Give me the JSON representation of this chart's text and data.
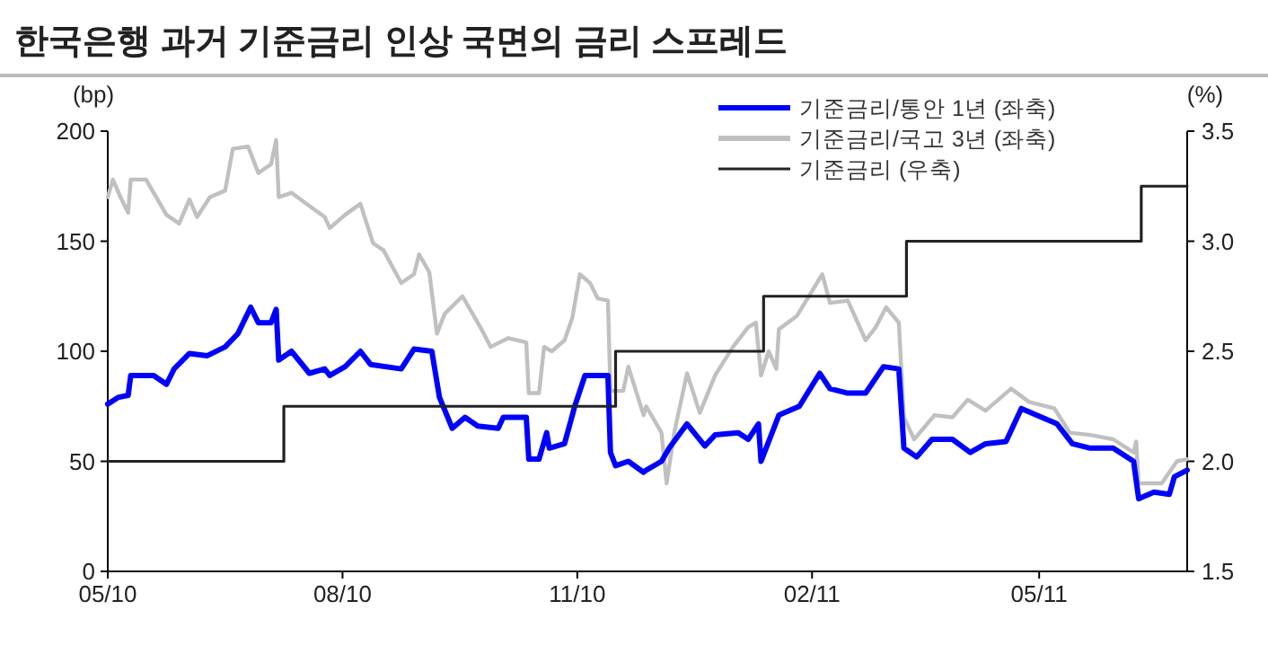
{
  "chart_data": {
    "type": "line",
    "title": "한국은행 과거 기준금리 인상 국면의 금리 스프레드",
    "ylabel": "(bp)",
    "y2label": "(%)",
    "xlim": [
      "2010-05-01",
      "2011-06-28"
    ],
    "xticks": [
      {
        "value": "2010-05-01",
        "label": "05/10"
      },
      {
        "value": "2010-08-01",
        "label": "08/10"
      },
      {
        "value": "2010-11-01",
        "label": "11/10"
      },
      {
        "value": "2011-02-01",
        "label": "02/11"
      },
      {
        "value": "2011-05-01",
        "label": "05/11"
      }
    ],
    "ylim": [
      0,
      200
    ],
    "yticks": [
      0,
      50,
      100,
      150,
      200
    ],
    "y2lim": [
      1.5,
      3.5
    ],
    "y2ticks": [
      {
        "value": 1.5,
        "label": "1.5"
      },
      {
        "value": 2,
        "label": "2.0"
      },
      {
        "value": 2.5,
        "label": "2.5"
      },
      {
        "value": 3,
        "label": "3.0"
      },
      {
        "value": 3.5,
        "label": "3.5"
      }
    ],
    "grid": false,
    "legend": "top right",
    "series": [
      {
        "name": "기준금리/국고 3년 (좌축)",
        "color": "#c0c0c0",
        "x": [
          "2010-05-01",
          "2010-05-03",
          "2010-05-06",
          "2010-05-09",
          "2010-05-10",
          "2010-05-16",
          "2010-05-24",
          "2010-05-29",
          "2010-06-02",
          "2010-06-05",
          "2010-06-10",
          "2010-06-16",
          "2010-06-19",
          "2010-06-25",
          "2010-06-29",
          "2010-07-04",
          "2010-07-06",
          "2010-07-07",
          "2010-07-12",
          "2010-07-19",
          "2010-07-25",
          "2010-07-27",
          "2010-08-02",
          "2010-08-08",
          "2010-08-13",
          "2010-08-17",
          "2010-08-24",
          "2010-08-29",
          "2010-08-31",
          "2010-09-04",
          "2010-09-07",
          "2010-09-10",
          "2010-09-17",
          "2010-09-24",
          "2010-09-28",
          "2010-10-05",
          "2010-10-12",
          "2010-10-13",
          "2010-10-17",
          "2010-10-19",
          "2010-10-22",
          "2010-10-27",
          "2010-10-30",
          "2010-11-02",
          "2010-11-06",
          "2010-11-09",
          "2010-11-13",
          "2010-11-14",
          "2010-11-19",
          "2010-11-21",
          "2010-11-27",
          "2010-11-28",
          "2010-12-04",
          "2010-12-06",
          "2010-12-09",
          "2010-12-14",
          "2010-12-19",
          "2010-12-25",
          "2011-01-01",
          "2011-01-07",
          "2011-01-10",
          "2011-01-12",
          "2011-01-15",
          "2011-01-18",
          "2011-01-19",
          "2011-01-26",
          "2011-02-05",
          "2011-02-08",
          "2011-02-15",
          "2011-02-22",
          "2011-02-26",
          "2011-03-02",
          "2011-03-07",
          "2011-03-09",
          "2011-03-13",
          "2011-03-21",
          "2011-03-28",
          "2011-04-03",
          "2011-04-10",
          "2011-04-20",
          "2011-04-27",
          "2011-05-07",
          "2011-05-13",
          "2011-05-21",
          "2011-05-30",
          "2011-06-07",
          "2011-06-08",
          "2011-06-09",
          "2011-06-15",
          "2011-06-18",
          "2011-06-24",
          "2011-06-28"
        ],
        "values": [
          170,
          178,
          170,
          163,
          178,
          178,
          162,
          158,
          169,
          161,
          170,
          173,
          192,
          193,
          181,
          185,
          196,
          170,
          172,
          166,
          161,
          156,
          162,
          167,
          149,
          146,
          131,
          135,
          144,
          136,
          108,
          117,
          125,
          111,
          102,
          106,
          104,
          81,
          81,
          102,
          100,
          105,
          115,
          135,
          131,
          124,
          123,
          82,
          82,
          93,
          71,
          75,
          63,
          40,
          63,
          90,
          72,
          89,
          102,
          111,
          113,
          89,
          100,
          92,
          110,
          116,
          135,
          122,
          123,
          105,
          111,
          120,
          113,
          70,
          60,
          71,
          70,
          78,
          73,
          83,
          77,
          74,
          63,
          62,
          60,
          54,
          59,
          40,
          40,
          40,
          50,
          51
        ]
      },
      {
        "name": "기준금리/통안 1년 (좌축)",
        "color": "#0000ff",
        "x": [
          "2010-05-01",
          "2010-05-05",
          "2010-05-09",
          "2010-05-10",
          "2010-05-19",
          "2010-05-24",
          "2010-05-27",
          "2010-06-02",
          "2010-06-09",
          "2010-06-16",
          "2010-06-21",
          "2010-06-26",
          "2010-06-29",
          "2010-07-04",
          "2010-07-06",
          "2010-07-07",
          "2010-07-12",
          "2010-07-19",
          "2010-07-25",
          "2010-07-27",
          "2010-08-02",
          "2010-08-08",
          "2010-08-12",
          "2010-08-24",
          "2010-08-29",
          "2010-09-05",
          "2010-09-08",
          "2010-09-13",
          "2010-09-18",
          "2010-09-23",
          "2010-10-01",
          "2010-10-03",
          "2010-10-12",
          "2010-10-13",
          "2010-10-17",
          "2010-10-20",
          "2010-10-21",
          "2010-10-27",
          "2010-10-31",
          "2010-11-04",
          "2010-11-09",
          "2010-11-13",
          "2010-11-14",
          "2010-11-16",
          "2010-11-21",
          "2010-11-27",
          "2010-11-28",
          "2010-12-04",
          "2010-12-07",
          "2010-12-14",
          "2010-12-21",
          "2010-12-25",
          "2011-01-03",
          "2011-01-07",
          "2011-01-11",
          "2011-01-12",
          "2011-01-19",
          "2011-01-27",
          "2011-02-04",
          "2011-02-08",
          "2011-02-15",
          "2011-02-22",
          "2011-03-01",
          "2011-03-07",
          "2011-03-09",
          "2011-03-14",
          "2011-03-20",
          "2011-03-28",
          "2011-04-04",
          "2011-04-10",
          "2011-04-18",
          "2011-04-24",
          "2011-05-02",
          "2011-05-08",
          "2011-05-14",
          "2011-05-21",
          "2011-05-30",
          "2011-06-07",
          "2011-06-09",
          "2011-06-15",
          "2011-06-21",
          "2011-06-23",
          "2011-06-28"
        ],
        "values": [
          76,
          79,
          80,
          89,
          89,
          85,
          92,
          99,
          98,
          102,
          108,
          120,
          113,
          113,
          119,
          96,
          100,
          90,
          92,
          89,
          93,
          100,
          94,
          92,
          101,
          100,
          79,
          65,
          70,
          66,
          65,
          70,
          70,
          51,
          51,
          63,
          56,
          58,
          75,
          89,
          89,
          89,
          54,
          48,
          50,
          45,
          46,
          50,
          56,
          67,
          57,
          62,
          63,
          60,
          67,
          50,
          71,
          75,
          90,
          83,
          81,
          81,
          93,
          92,
          56,
          52,
          60,
          60,
          54,
          58,
          59,
          74,
          70,
          67,
          58,
          56,
          56,
          50,
          33,
          36,
          35,
          43,
          46
        ]
      },
      {
        "name": "기준금리 (우축)",
        "color": "#222222",
        "type": "step",
        "axis": "y2",
        "x": [
          "2010-05-01",
          "2010-07-09",
          "2010-11-16",
          "2011-01-13",
          "2011-03-10",
          "2011-06-10",
          "2011-06-28"
        ],
        "values": [
          2.0,
          2.25,
          2.5,
          2.75,
          3.0,
          3.25,
          3.25
        ]
      }
    ]
  }
}
